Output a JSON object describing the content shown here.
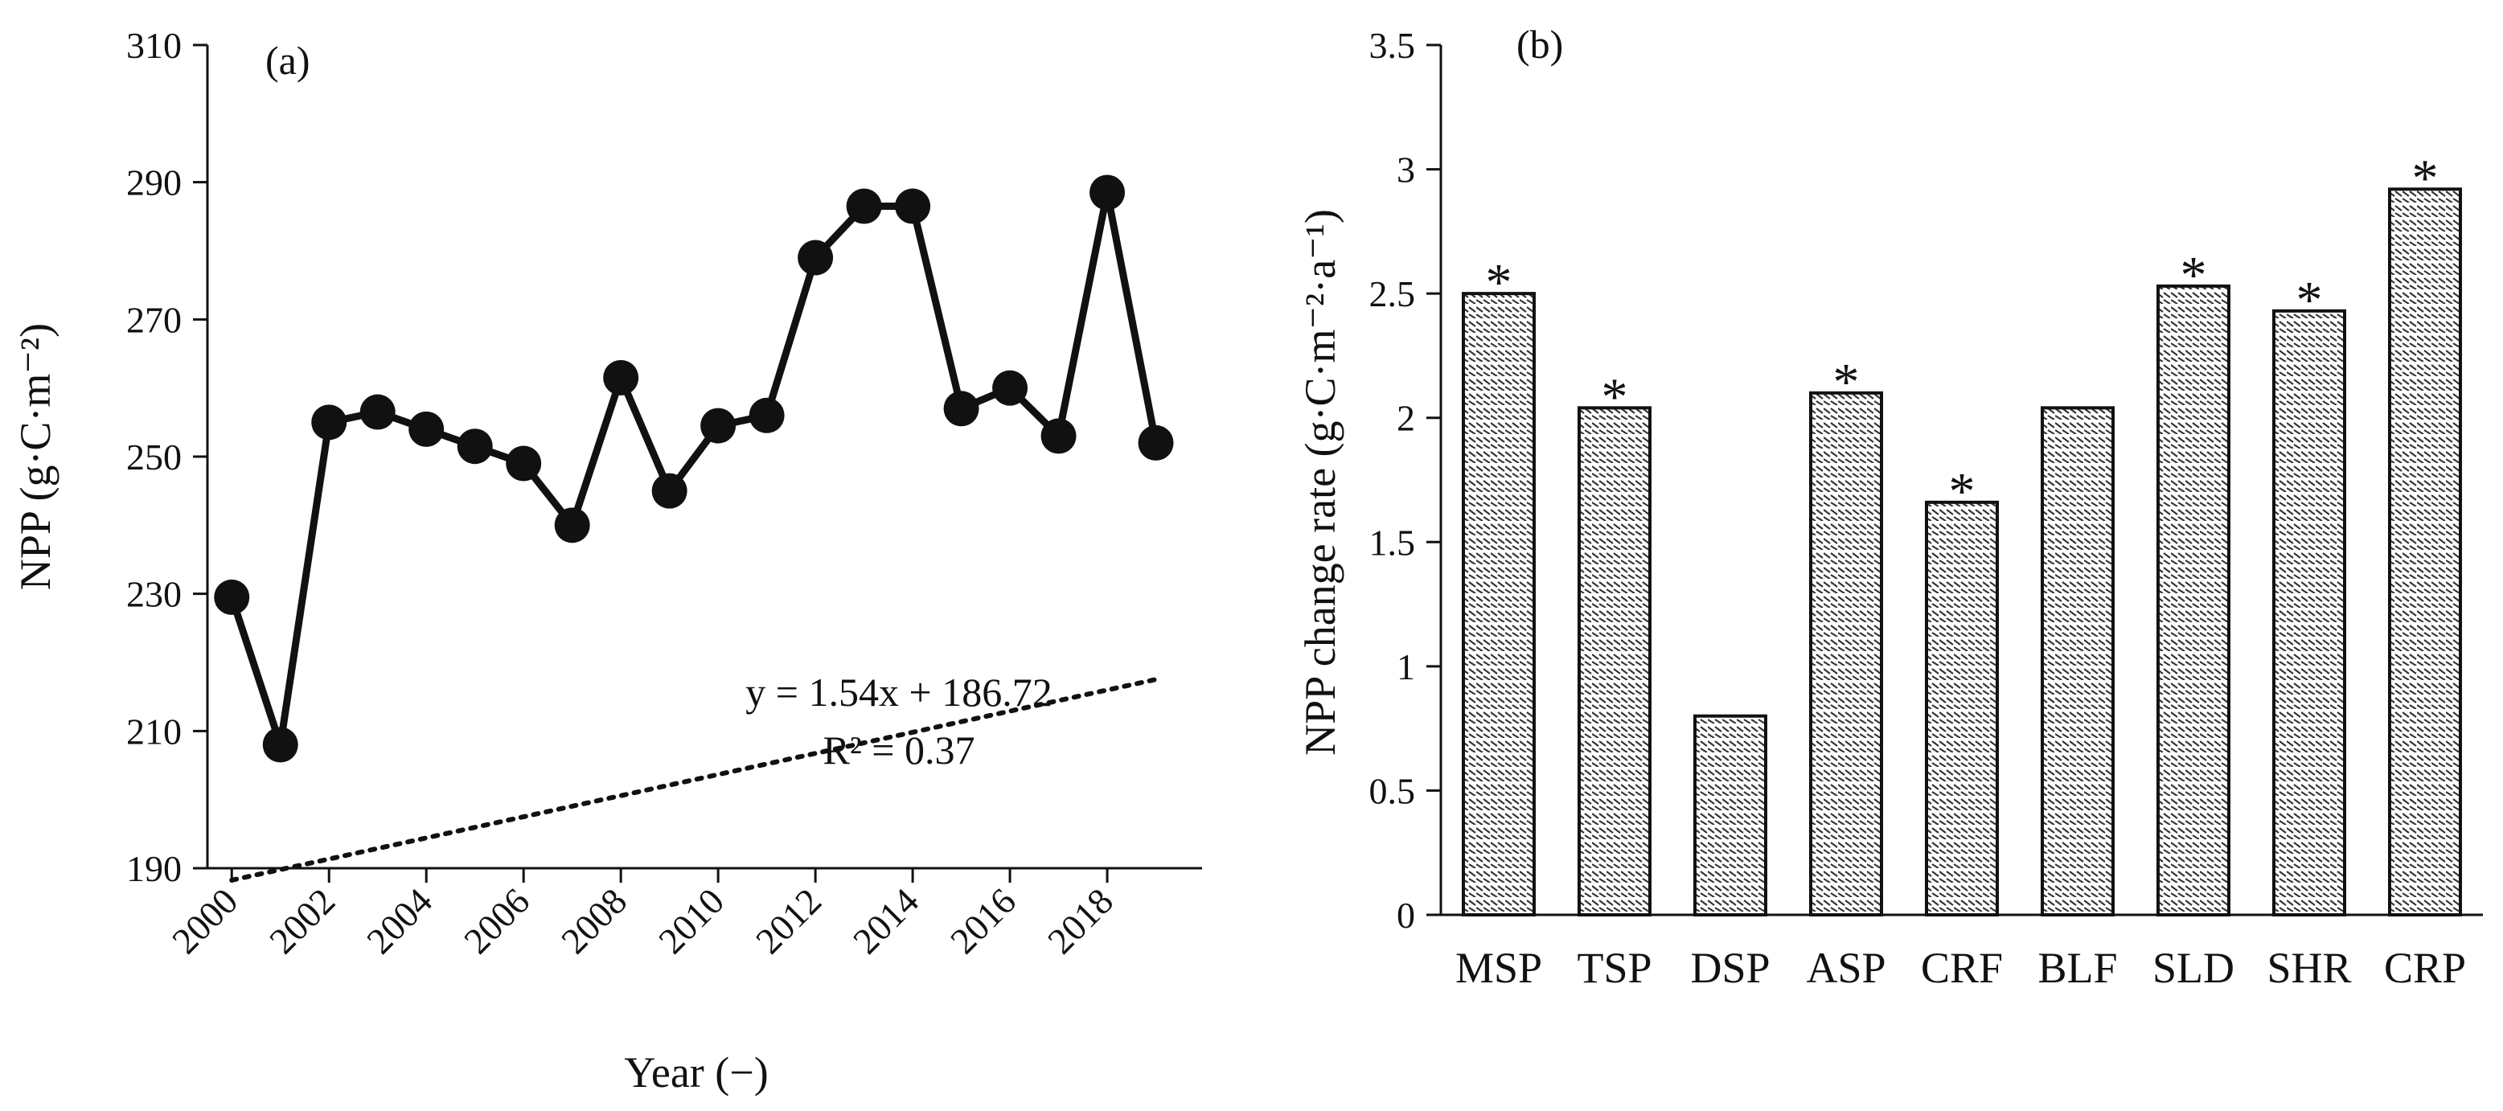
{
  "chart_data": [
    {
      "type": "line",
      "panel_label": "(a)",
      "xlabel": "Year (−)",
      "ylabel": "NPP (g·C·m⁻²)",
      "ylim": [
        190,
        310
      ],
      "yticks": [
        190,
        210,
        230,
        250,
        270,
        290,
        310
      ],
      "xticks": [
        2000,
        2002,
        2004,
        2006,
        2008,
        2010,
        2012,
        2014,
        2016,
        2018
      ],
      "x": [
        2000,
        2001,
        2002,
        2003,
        2004,
        2005,
        2006,
        2007,
        2008,
        2009,
        2010,
        2011,
        2012,
        2013,
        2014,
        2015,
        2016,
        2017,
        2018,
        2019
      ],
      "values": [
        229.5,
        208,
        255,
        256.5,
        254,
        251.5,
        249,
        240,
        261.5,
        245,
        254.5,
        256,
        279,
        286.5,
        286.5,
        257,
        260,
        253,
        288.5,
        252
      ],
      "trendline": {
        "slope": 1.54,
        "intercept": 186.72,
        "style": "dotted"
      },
      "annotations": {
        "equation": "y = 1.54x + 186.72",
        "r2": "R² = 0.37"
      }
    },
    {
      "type": "bar",
      "panel_label": "(b)",
      "xlabel": "",
      "ylabel": "NPP change rate (g·C·m⁻²·a⁻¹)",
      "ylim": [
        0,
        3.5
      ],
      "yticks": [
        "0",
        "0.5",
        "1",
        "1.5",
        "2",
        "2.5",
        "3",
        "3.5"
      ],
      "categories": [
        "MSP",
        "TSP",
        "DSP",
        "ASP",
        "CRF",
        "BLF",
        "SLD",
        "SHR",
        "CRP"
      ],
      "values": [
        2.5,
        2.04,
        0.8,
        2.1,
        1.66,
        2.04,
        2.53,
        2.43,
        2.92
      ],
      "significance_mark": "*",
      "significant": [
        true,
        true,
        false,
        true,
        true,
        false,
        true,
        true,
        true
      ]
    }
  ]
}
